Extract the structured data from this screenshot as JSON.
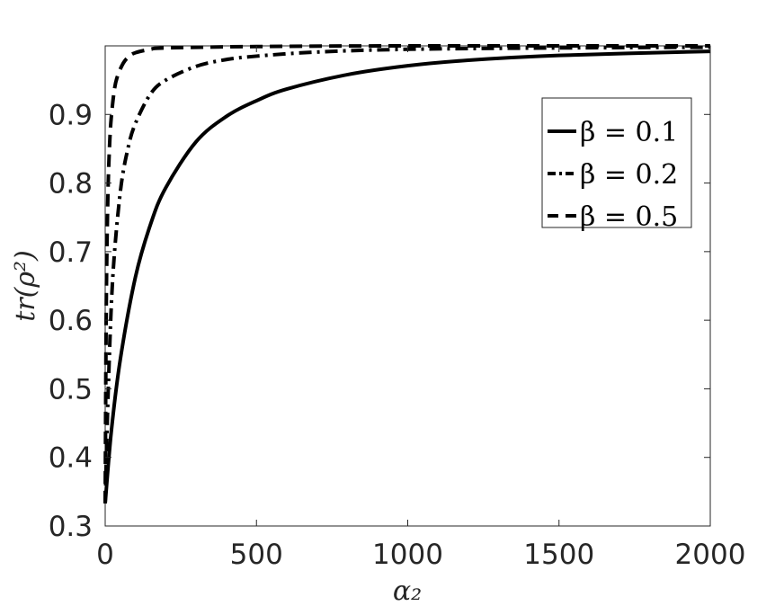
{
  "chart_data": {
    "type": "line",
    "xlabel": "α₂",
    "ylabel": "tr(ρ²)",
    "xlim": [
      0,
      2000
    ],
    "ylim": [
      0.3,
      1.0
    ],
    "xticks": [
      0,
      500,
      1000,
      1500,
      2000
    ],
    "xtick_labels": [
      "0",
      "500",
      "1000",
      "1500",
      "2000"
    ],
    "yticks": [
      0.3,
      0.4,
      0.5,
      0.6,
      0.7,
      0.8,
      0.9
    ],
    "ytick_labels": [
      "0.3",
      "0.4",
      "0.5",
      "0.6",
      "0.7",
      "0.8",
      "0.9"
    ],
    "grid": false,
    "legend_position": "top-right",
    "series": [
      {
        "name": "β = 0.1",
        "style": "solid",
        "x": [
          0,
          20,
          50,
          100,
          150,
          200,
          300,
          400,
          500,
          600,
          800,
          1000,
          1200,
          1500,
          2000
        ],
        "y": [
          0.333,
          0.437,
          0.543,
          0.663,
          0.74,
          0.793,
          0.86,
          0.897,
          0.92,
          0.937,
          0.958,
          0.971,
          0.979,
          0.986,
          0.992
        ]
      },
      {
        "name": "β = 0.2",
        "style": "dashdot",
        "x": [
          0,
          10,
          25,
          50,
          75,
          100,
          150,
          200,
          300,
          400,
          500,
          700,
          1000,
          1500,
          2000
        ],
        "y": [
          0.333,
          0.497,
          0.662,
          0.787,
          0.85,
          0.887,
          0.93,
          0.95,
          0.97,
          0.98,
          0.985,
          0.991,
          0.995,
          0.997,
          0.998
        ]
      },
      {
        "name": "β = 0.5",
        "style": "dashed",
        "x": [
          0,
          3,
          6,
          10,
          15,
          20,
          30,
          40,
          60,
          80,
          100,
          150,
          200,
          500,
          1000,
          2000
        ],
        "y": [
          0.333,
          0.59,
          0.71,
          0.8,
          0.86,
          0.895,
          0.935,
          0.955,
          0.975,
          0.985,
          0.99,
          0.995,
          0.997,
          0.999,
          1.0,
          1.0
        ]
      }
    ]
  }
}
